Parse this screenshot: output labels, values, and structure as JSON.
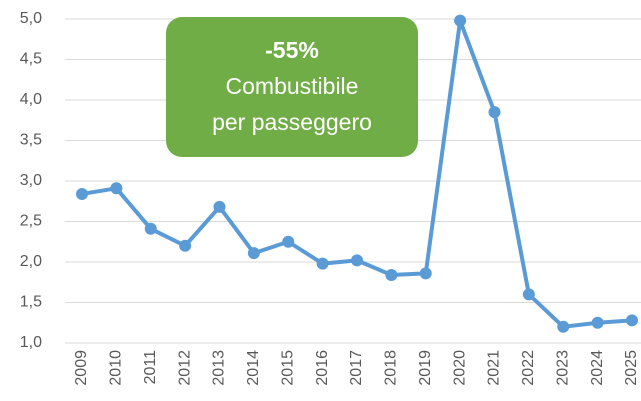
{
  "chart_data": {
    "type": "line",
    "categories": [
      "2009",
      "2010",
      "2011",
      "2012",
      "2013",
      "2014",
      "2015",
      "2016",
      "2017",
      "2018",
      "2019",
      "2020",
      "2021",
      "2022",
      "2023",
      "2024",
      "2025"
    ],
    "series": [
      {
        "color": "#5b9bd5",
        "values": [
          2.84,
          2.91,
          2.41,
          2.2,
          2.68,
          2.11,
          2.25,
          1.98,
          2.02,
          1.84,
          1.86,
          4.98,
          3.85,
          1.6,
          1.2,
          1.25,
          1.28
        ]
      }
    ],
    "ylim": [
      1.0,
      5.0
    ],
    "yticks": [
      {
        "value": 1.0,
        "label": "1,0"
      },
      {
        "value": 1.5,
        "label": "1,5"
      },
      {
        "value": 2.0,
        "label": "2,0"
      },
      {
        "value": 2.5,
        "label": "2,5"
      },
      {
        "value": 3.0,
        "label": "3,0"
      },
      {
        "value": 3.5,
        "label": "3,5"
      },
      {
        "value": 4.0,
        "label": "4,0"
      },
      {
        "value": 4.5,
        "label": "4,5"
      },
      {
        "value": 5.0,
        "label": "5,0"
      }
    ],
    "grid": true,
    "annotation": {
      "color": "#70ad47",
      "lines": [
        "-55%",
        "Combustibile",
        "per passeggero"
      ]
    }
  }
}
